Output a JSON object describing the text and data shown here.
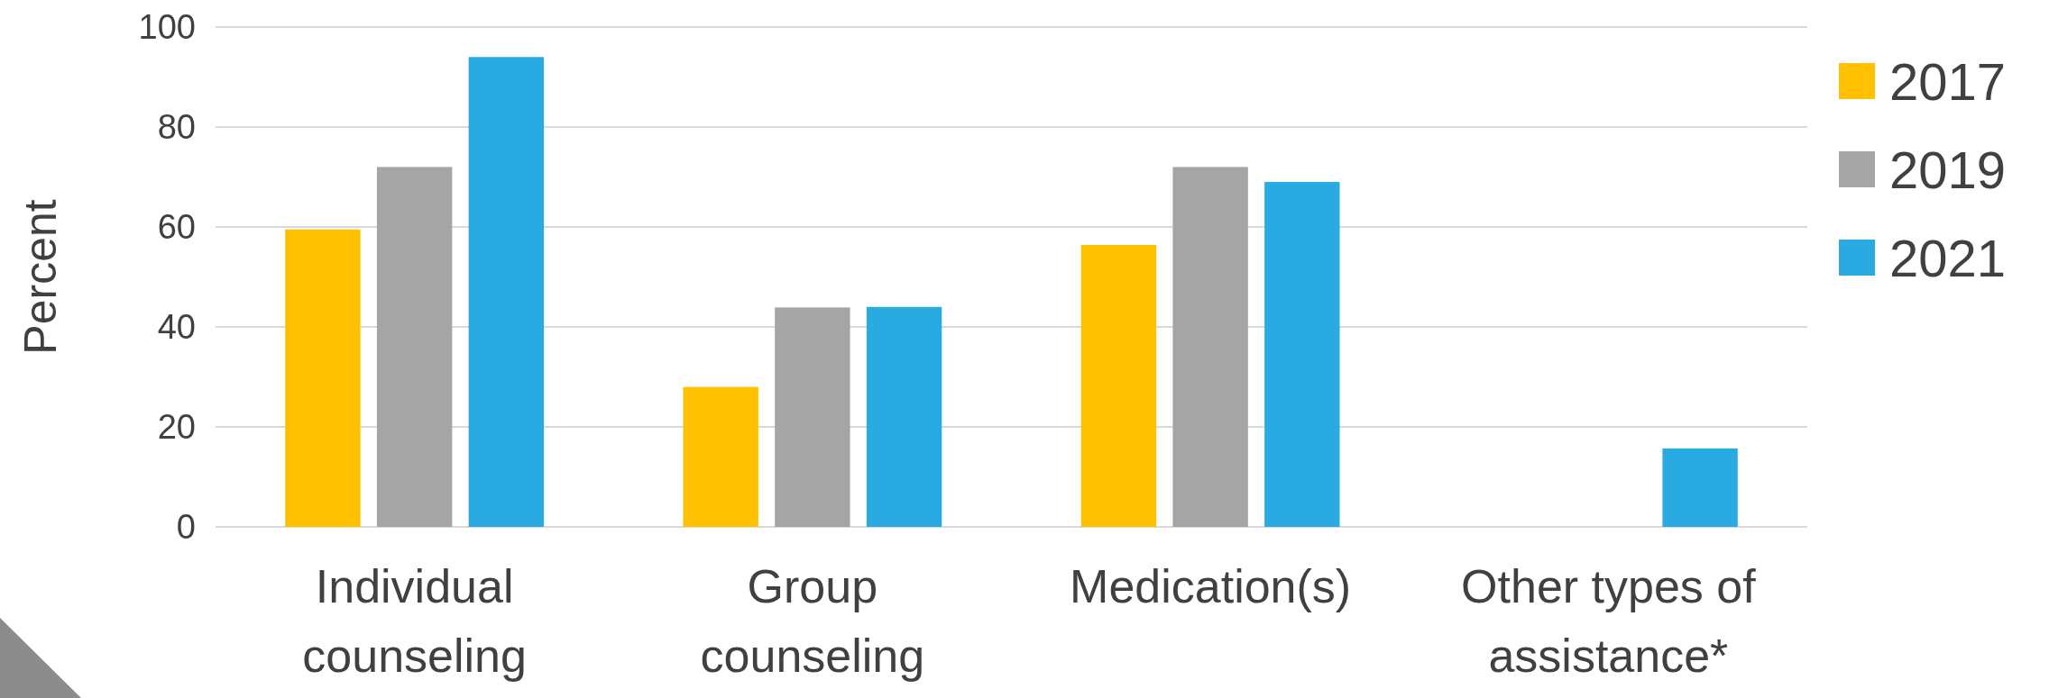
{
  "chart_data": {
    "type": "bar",
    "ylabel": "Percent",
    "categories": [
      "Individual counseling",
      "Group counseling",
      "Medication(s)",
      "Other types of assistance*"
    ],
    "series": [
      {
        "name": "2017",
        "color": "#ffc000",
        "values": [
          59.5,
          28,
          56.4,
          null
        ]
      },
      {
        "name": "2019",
        "color": "#a5a5a5",
        "values": [
          72,
          43.9,
          72,
          null
        ]
      },
      {
        "name": "2021",
        "color": "#29abe2",
        "values": [
          94,
          44,
          69,
          15.7
        ]
      }
    ],
    "ylim": [
      0,
      100
    ],
    "yticks": [
      0,
      20,
      40,
      60,
      80,
      100
    ],
    "grid": "y",
    "legend": "right"
  }
}
